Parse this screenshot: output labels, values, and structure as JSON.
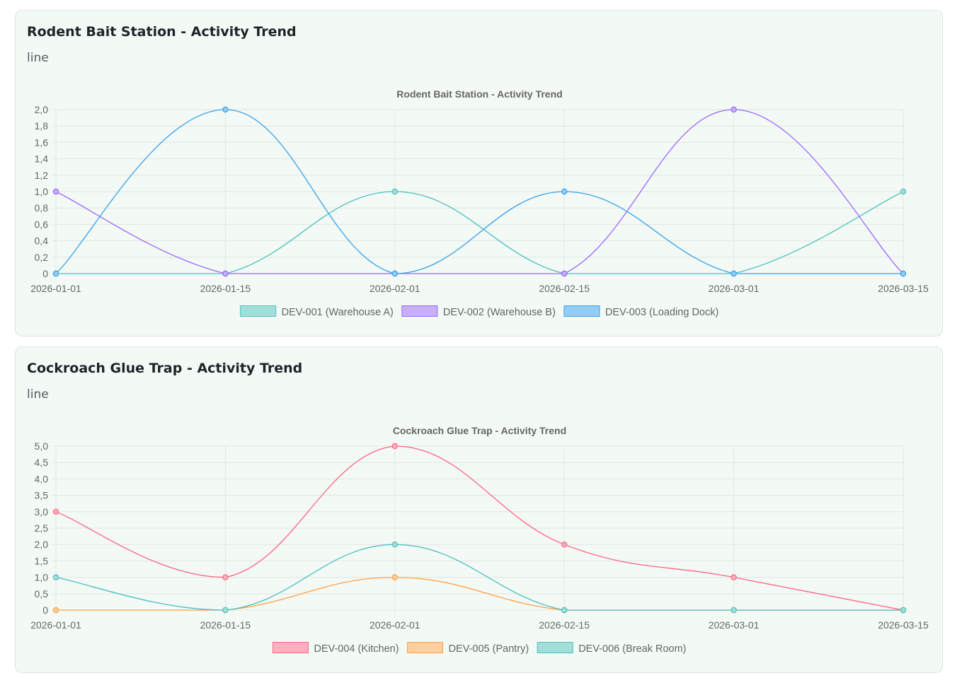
{
  "charts": [
    {
      "card_title": "Rodent Bait Station - Activity Trend",
      "card_subtitle": "line",
      "chart_data": {
        "type": "line",
        "title": "Rodent Bait Station - Activity Trend",
        "x": [
          "2026-01-01",
          "2026-01-15",
          "2026-02-01",
          "2026-02-15",
          "2026-03-01",
          "2026-03-15"
        ],
        "ylim": [
          0,
          2
        ],
        "ytick_step": 0.2,
        "y_decimal_separator": ",",
        "grid": true,
        "legend_position": "bottom",
        "series": [
          {
            "name": "DEV-001 (Warehouse A)",
            "values": [
              0,
              0,
              1,
              0,
              0,
              1
            ],
            "color": "#4bc0c0",
            "fill": "#a3dfd9"
          },
          {
            "name": "DEV-002 (Warehouse B)",
            "values": [
              1,
              0,
              0,
              0,
              2,
              0
            ],
            "color": "#9966ff",
            "fill": "#c8b0f6"
          },
          {
            "name": "DEV-003 (Loading Dock)",
            "values": [
              0,
              2,
              0,
              1,
              0,
              0
            ],
            "color": "#36a2eb",
            "fill": "#96ccf2"
          }
        ]
      }
    },
    {
      "card_title": "Cockroach Glue Trap - Activity Trend",
      "card_subtitle": "line",
      "chart_data": {
        "type": "line",
        "title": "Cockroach Glue Trap - Activity Trend",
        "x": [
          "2026-01-01",
          "2026-01-15",
          "2026-02-01",
          "2026-02-15",
          "2026-03-01",
          "2026-03-15"
        ],
        "ylim": [
          0,
          5
        ],
        "ytick_step": 0.5,
        "y_decimal_separator": ",",
        "grid": true,
        "legend_position": "bottom",
        "series": [
          {
            "name": "DEV-004 (Kitchen)",
            "values": [
              3,
              1,
              5,
              2,
              1,
              0
            ],
            "color": "#ff6384",
            "fill": "#ffafc0"
          },
          {
            "name": "DEV-005 (Pantry)",
            "values": [
              0,
              0,
              1,
              0,
              0,
              0
            ],
            "color": "#ff9f40",
            "fill": "#fecf9f"
          },
          {
            "name": "DEV-006 (Break Room)",
            "values": [
              1,
              0,
              2,
              0,
              0,
              0
            ],
            "color": "#4bc0c0",
            "fill": "#a3dfd9"
          }
        ]
      }
    }
  ]
}
